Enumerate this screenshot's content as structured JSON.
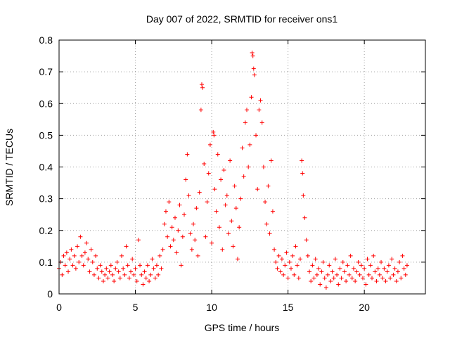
{
  "chart_data": {
    "type": "scatter",
    "title": "Day 007 of 2022, SRMTID for receiver ons1",
    "xlabel": "GPS time / hours",
    "ylabel": "SRMTID / TECUs",
    "xlim": [
      0,
      24
    ],
    "ylim": [
      0,
      0.8
    ],
    "xticks": [
      0,
      5,
      10,
      15,
      20
    ],
    "yticks": [
      0,
      0.1,
      0.2,
      0.3,
      0.4,
      0.5,
      0.6,
      0.7,
      0.8
    ],
    "xtick_labels": [
      "0",
      "5",
      "10",
      "15",
      "20"
    ],
    "ytick_labels": [
      "0",
      "0.1",
      "0.2",
      "0.3",
      "0.4",
      "0.5",
      "0.6",
      "0.7",
      "0.8"
    ],
    "grid": true,
    "marker": "+",
    "color": "#ff0000",
    "series": [
      {
        "name": "SRMTID",
        "points": [
          [
            0.0,
            0.08
          ],
          [
            0.1,
            0.1
          ],
          [
            0.2,
            0.06
          ],
          [
            0.3,
            0.12
          ],
          [
            0.4,
            0.09
          ],
          [
            0.5,
            0.13
          ],
          [
            0.6,
            0.07
          ],
          [
            0.7,
            0.11
          ],
          [
            0.8,
            0.14
          ],
          [
            0.9,
            0.09
          ],
          [
            1.0,
            0.12
          ],
          [
            1.1,
            0.08
          ],
          [
            1.2,
            0.15
          ],
          [
            1.3,
            0.1
          ],
          [
            1.4,
            0.18
          ],
          [
            1.5,
            0.12
          ],
          [
            1.6,
            0.09
          ],
          [
            1.7,
            0.13
          ],
          [
            1.8,
            0.16
          ],
          [
            1.9,
            0.11
          ],
          [
            2.0,
            0.07
          ],
          [
            2.1,
            0.14
          ],
          [
            2.2,
            0.1
          ],
          [
            2.3,
            0.06
          ],
          [
            2.4,
            0.12
          ],
          [
            2.5,
            0.08
          ],
          [
            2.6,
            0.05
          ],
          [
            2.7,
            0.09
          ],
          [
            2.8,
            0.07
          ],
          [
            2.9,
            0.04
          ],
          [
            3.0,
            0.06
          ],
          [
            3.1,
            0.08
          ],
          [
            3.2,
            0.05
          ],
          [
            3.3,
            0.07
          ],
          [
            3.4,
            0.09
          ],
          [
            3.5,
            0.06
          ],
          [
            3.6,
            0.04
          ],
          [
            3.7,
            0.08
          ],
          [
            3.8,
            0.1
          ],
          [
            3.9,
            0.07
          ],
          [
            4.0,
            0.05
          ],
          [
            4.1,
            0.12
          ],
          [
            4.2,
            0.08
          ],
          [
            4.3,
            0.06
          ],
          [
            4.4,
            0.15
          ],
          [
            4.5,
            0.09
          ],
          [
            4.6,
            0.05
          ],
          [
            4.7,
            0.07
          ],
          [
            4.8,
            0.11
          ],
          [
            4.9,
            0.06
          ],
          [
            5.0,
            0.08
          ],
          [
            5.1,
            0.04
          ],
          [
            5.2,
            0.17
          ],
          [
            5.3,
            0.09
          ],
          [
            5.4,
            0.06
          ],
          [
            5.5,
            0.03
          ],
          [
            5.6,
            0.07
          ],
          [
            5.7,
            0.05
          ],
          [
            5.8,
            0.09
          ],
          [
            5.9,
            0.04
          ],
          [
            6.0,
            0.06
          ],
          [
            6.1,
            0.11
          ],
          [
            6.2,
            0.08
          ],
          [
            6.3,
            0.05
          ],
          [
            6.4,
            0.09
          ],
          [
            6.5,
            0.06
          ],
          [
            6.6,
            0.12
          ],
          [
            6.7,
            0.08
          ],
          [
            6.8,
            0.14
          ],
          [
            6.9,
            0.22
          ],
          [
            7.0,
            0.26
          ],
          [
            7.1,
            0.18
          ],
          [
            7.2,
            0.29
          ],
          [
            7.3,
            0.15
          ],
          [
            7.4,
            0.21
          ],
          [
            7.5,
            0.17
          ],
          [
            7.6,
            0.24
          ],
          [
            7.7,
            0.13
          ],
          [
            7.8,
            0.2
          ],
          [
            7.9,
            0.28
          ],
          [
            8.0,
            0.09
          ],
          [
            8.1,
            0.18
          ],
          [
            8.2,
            0.25
          ],
          [
            8.3,
            0.36
          ],
          [
            8.4,
            0.44
          ],
          [
            8.5,
            0.31
          ],
          [
            8.6,
            0.19
          ],
          [
            8.7,
            0.14
          ],
          [
            8.8,
            0.22
          ],
          [
            8.9,
            0.17
          ],
          [
            9.0,
            0.27
          ],
          [
            9.1,
            0.12
          ],
          [
            9.2,
            0.32
          ],
          [
            9.3,
            0.58
          ],
          [
            9.35,
            0.66
          ],
          [
            9.4,
            0.65
          ],
          [
            9.5,
            0.41
          ],
          [
            9.6,
            0.18
          ],
          [
            9.7,
            0.29
          ],
          [
            9.8,
            0.38
          ],
          [
            9.9,
            0.47
          ],
          [
            10.0,
            0.16
          ],
          [
            10.1,
            0.51
          ],
          [
            10.15,
            0.5
          ],
          [
            10.2,
            0.33
          ],
          [
            10.3,
            0.26
          ],
          [
            10.4,
            0.44
          ],
          [
            10.5,
            0.21
          ],
          [
            10.6,
            0.36
          ],
          [
            10.7,
            0.14
          ],
          [
            10.8,
            0.39
          ],
          [
            10.9,
            0.28
          ],
          [
            11.0,
            0.31
          ],
          [
            11.1,
            0.19
          ],
          [
            11.2,
            0.42
          ],
          [
            11.3,
            0.23
          ],
          [
            11.4,
            0.15
          ],
          [
            11.5,
            0.34
          ],
          [
            11.6,
            0.27
          ],
          [
            11.7,
            0.11
          ],
          [
            11.8,
            0.21
          ],
          [
            11.9,
            0.3
          ],
          [
            12.0,
            0.46
          ],
          [
            12.1,
            0.37
          ],
          [
            12.2,
            0.54
          ],
          [
            12.3,
            0.58
          ],
          [
            12.4,
            0.4
          ],
          [
            12.5,
            0.47
          ],
          [
            12.6,
            0.62
          ],
          [
            12.65,
            0.76
          ],
          [
            12.7,
            0.75
          ],
          [
            12.75,
            0.71
          ],
          [
            12.8,
            0.69
          ],
          [
            12.9,
            0.5
          ],
          [
            13.0,
            0.33
          ],
          [
            13.1,
            0.58
          ],
          [
            13.2,
            0.61
          ],
          [
            13.3,
            0.54
          ],
          [
            13.4,
            0.4
          ],
          [
            13.5,
            0.29
          ],
          [
            13.6,
            0.22
          ],
          [
            13.7,
            0.34
          ],
          [
            13.8,
            0.19
          ],
          [
            13.9,
            0.42
          ],
          [
            14.0,
            0.26
          ],
          [
            14.1,
            0.14
          ],
          [
            14.2,
            0.1
          ],
          [
            14.3,
            0.08
          ],
          [
            14.4,
            0.12
          ],
          [
            14.5,
            0.07
          ],
          [
            14.6,
            0.11
          ],
          [
            14.7,
            0.06
          ],
          [
            14.8,
            0.09
          ],
          [
            14.9,
            0.13
          ],
          [
            15.0,
            0.05
          ],
          [
            15.1,
            0.1
          ],
          [
            15.2,
            0.08
          ],
          [
            15.3,
            0.12
          ],
          [
            15.4,
            0.06
          ],
          [
            15.5,
            0.15
          ],
          [
            15.6,
            0.09
          ],
          [
            15.7,
            0.05
          ],
          [
            15.8,
            0.11
          ],
          [
            15.9,
            0.42
          ],
          [
            15.95,
            0.38
          ],
          [
            16.0,
            0.31
          ],
          [
            16.1,
            0.24
          ],
          [
            16.2,
            0.17
          ],
          [
            16.3,
            0.12
          ],
          [
            16.4,
            0.07
          ],
          [
            16.5,
            0.04
          ],
          [
            16.6,
            0.09
          ],
          [
            16.7,
            0.05
          ],
          [
            16.8,
            0.11
          ],
          [
            16.9,
            0.06
          ],
          [
            17.0,
            0.08
          ],
          [
            17.1,
            0.03
          ],
          [
            17.2,
            0.07
          ],
          [
            17.3,
            0.1
          ],
          [
            17.4,
            0.05
          ],
          [
            17.5,
            0.02
          ],
          [
            17.6,
            0.06
          ],
          [
            17.7,
            0.09
          ],
          [
            17.8,
            0.04
          ],
          [
            17.9,
            0.07
          ],
          [
            18.0,
            0.05
          ],
          [
            18.1,
            0.11
          ],
          [
            18.2,
            0.06
          ],
          [
            18.3,
            0.03
          ],
          [
            18.4,
            0.08
          ],
          [
            18.5,
            0.05
          ],
          [
            18.6,
            0.1
          ],
          [
            18.7,
            0.07
          ],
          [
            18.8,
            0.04
          ],
          [
            18.9,
            0.09
          ],
          [
            19.0,
            0.06
          ],
          [
            19.1,
            0.12
          ],
          [
            19.2,
            0.05
          ],
          [
            19.3,
            0.08
          ],
          [
            19.4,
            0.04
          ],
          [
            19.5,
            0.07
          ],
          [
            19.6,
            0.1
          ],
          [
            19.7,
            0.06
          ],
          [
            19.8,
            0.09
          ],
          [
            19.9,
            0.05
          ],
          [
            20.0,
            0.08
          ],
          [
            20.1,
            0.03
          ],
          [
            20.2,
            0.11
          ],
          [
            20.3,
            0.06
          ],
          [
            20.4,
            0.09
          ],
          [
            20.5,
            0.05
          ],
          [
            20.6,
            0.12
          ],
          [
            20.7,
            0.07
          ],
          [
            20.8,
            0.04
          ],
          [
            20.9,
            0.08
          ],
          [
            21.0,
            0.06
          ],
          [
            21.1,
            0.1
          ],
          [
            21.2,
            0.05
          ],
          [
            21.3,
            0.08
          ],
          [
            21.4,
            0.04
          ],
          [
            21.5,
            0.07
          ],
          [
            21.6,
            0.09
          ],
          [
            21.7,
            0.05
          ],
          [
            21.8,
            0.11
          ],
          [
            21.9,
            0.06
          ],
          [
            22.0,
            0.08
          ],
          [
            22.1,
            0.04
          ],
          [
            22.2,
            0.07
          ],
          [
            22.3,
            0.1
          ],
          [
            22.4,
            0.05
          ],
          [
            22.5,
            0.12
          ],
          [
            22.6,
            0.08
          ],
          [
            22.7,
            0.06
          ],
          [
            22.8,
            0.09
          ]
        ]
      }
    ]
  }
}
